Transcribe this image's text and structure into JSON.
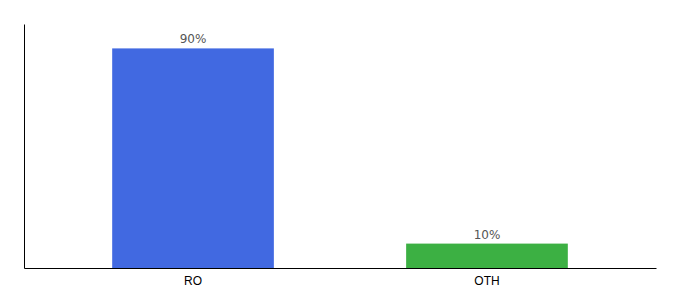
{
  "chart_data": {
    "type": "bar",
    "categories": [
      "RO",
      "OTH"
    ],
    "values": [
      90,
      10
    ],
    "value_labels": [
      "90%",
      "10%"
    ],
    "colors": [
      "#4169E1",
      "#3CB043"
    ],
    "ylim": [
      0,
      100
    ],
    "data_labels": true,
    "tick_labels": "x"
  }
}
